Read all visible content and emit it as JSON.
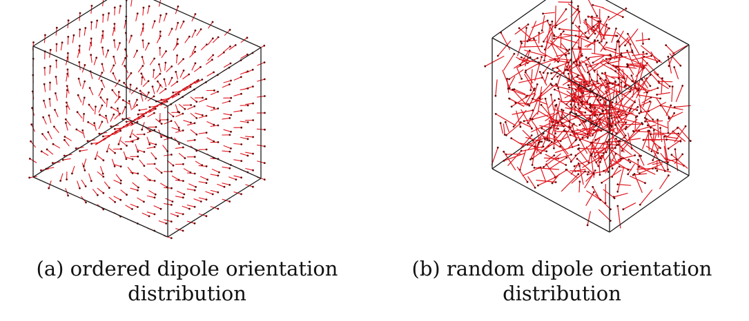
{
  "panels": [
    {
      "id": "a",
      "orientation": "ordered",
      "caption_line1": "(a) ordered dipole orientation",
      "caption_line2": "distribution"
    },
    {
      "id": "b",
      "orientation": "random",
      "caption_line1": "(b) random dipole orientation",
      "caption_line2": "distribution"
    }
  ],
  "colors": {
    "cube_edge": "#1a1a1a",
    "dipole": "#e0141c",
    "dipole_head": "#6a0a0a"
  }
}
